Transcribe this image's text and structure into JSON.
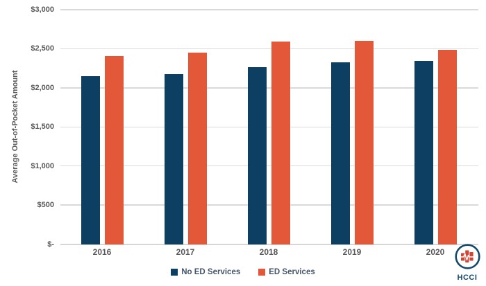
{
  "chart_data": {
    "type": "bar",
    "title": "",
    "xlabel": "",
    "ylabel": "Average Out-of-Pocket Amount",
    "ylim": [
      0,
      3000
    ],
    "ytick_step": 500,
    "grid": true,
    "legend_position": "bottom",
    "yticks": [
      {
        "value": 0,
        "label": "$-"
      },
      {
        "value": 500,
        "label": "$500"
      },
      {
        "value": 1000,
        "label": "$1,000"
      },
      {
        "value": 1500,
        "label": "$1,500"
      },
      {
        "value": 2000,
        "label": "$2,000"
      },
      {
        "value": 2500,
        "label": "$2,500"
      },
      {
        "value": 3000,
        "label": "$3,000"
      }
    ],
    "categories": [
      "2016",
      "2017",
      "2018",
      "2019",
      "2020"
    ],
    "series": [
      {
        "name": "No ED Services",
        "color": "#0d3f62",
        "values": [
          2145,
          2180,
          2265,
          2330,
          2340
        ]
      },
      {
        "name": "ED Services",
        "color": "#e4583a",
        "values": [
          2410,
          2450,
          2590,
          2600,
          2490
        ]
      }
    ]
  },
  "colors": {
    "gridline": "#d9d9d9",
    "axis_text": "#595959",
    "legend_text": "#44546a",
    "navy": "#0d3f62",
    "orange": "#e4583a",
    "logo_navy": "#15496c",
    "logo_red": "#cf4432"
  },
  "logo": {
    "text": "HCCI"
  }
}
